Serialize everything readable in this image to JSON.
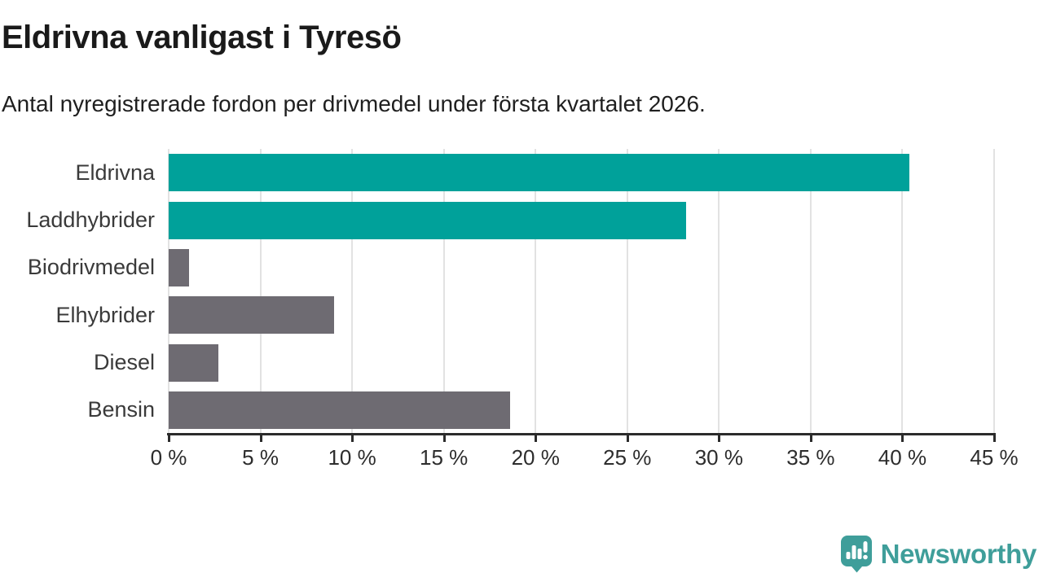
{
  "chart": {
    "title": "Eldrivna vanligast i Tyresö",
    "subtitle": "Antal nyregistrerade fordon per drivmedel under första kvartalet 2026."
  },
  "chart_data": {
    "type": "bar",
    "orientation": "horizontal",
    "title": "Eldrivna vanligast i Tyresö",
    "subtitle": "Antal nyregistrerade fordon per drivmedel under första kvartalet 2026.",
    "categories": [
      "Eldrivna",
      "Laddhybrider",
      "Biodrivmedel",
      "Elhybrider",
      "Diesel",
      "Bensin"
    ],
    "values": [
      40.4,
      28.2,
      1.1,
      9.0,
      2.7,
      18.6
    ],
    "unit": "%",
    "xlabel": "",
    "ylabel": "",
    "xlim": [
      0,
      45
    ],
    "xticks": [
      0,
      5,
      10,
      15,
      20,
      25,
      30,
      35,
      40,
      45
    ],
    "xtick_label_format": "{v} %",
    "grid": "vertical",
    "legend": "none",
    "highlight_color": "#00a19a",
    "default_color": "#6e6b72",
    "bar_colors": [
      "#00a19a",
      "#00a19a",
      "#6e6b72",
      "#6e6b72",
      "#6e6b72",
      "#6e6b72"
    ],
    "gridline_color": "#e2e2e2",
    "axis_color": "#2b2b2b"
  },
  "footer": {
    "brand": "Newsworthy",
    "brand_color": "#3f9e9a"
  }
}
